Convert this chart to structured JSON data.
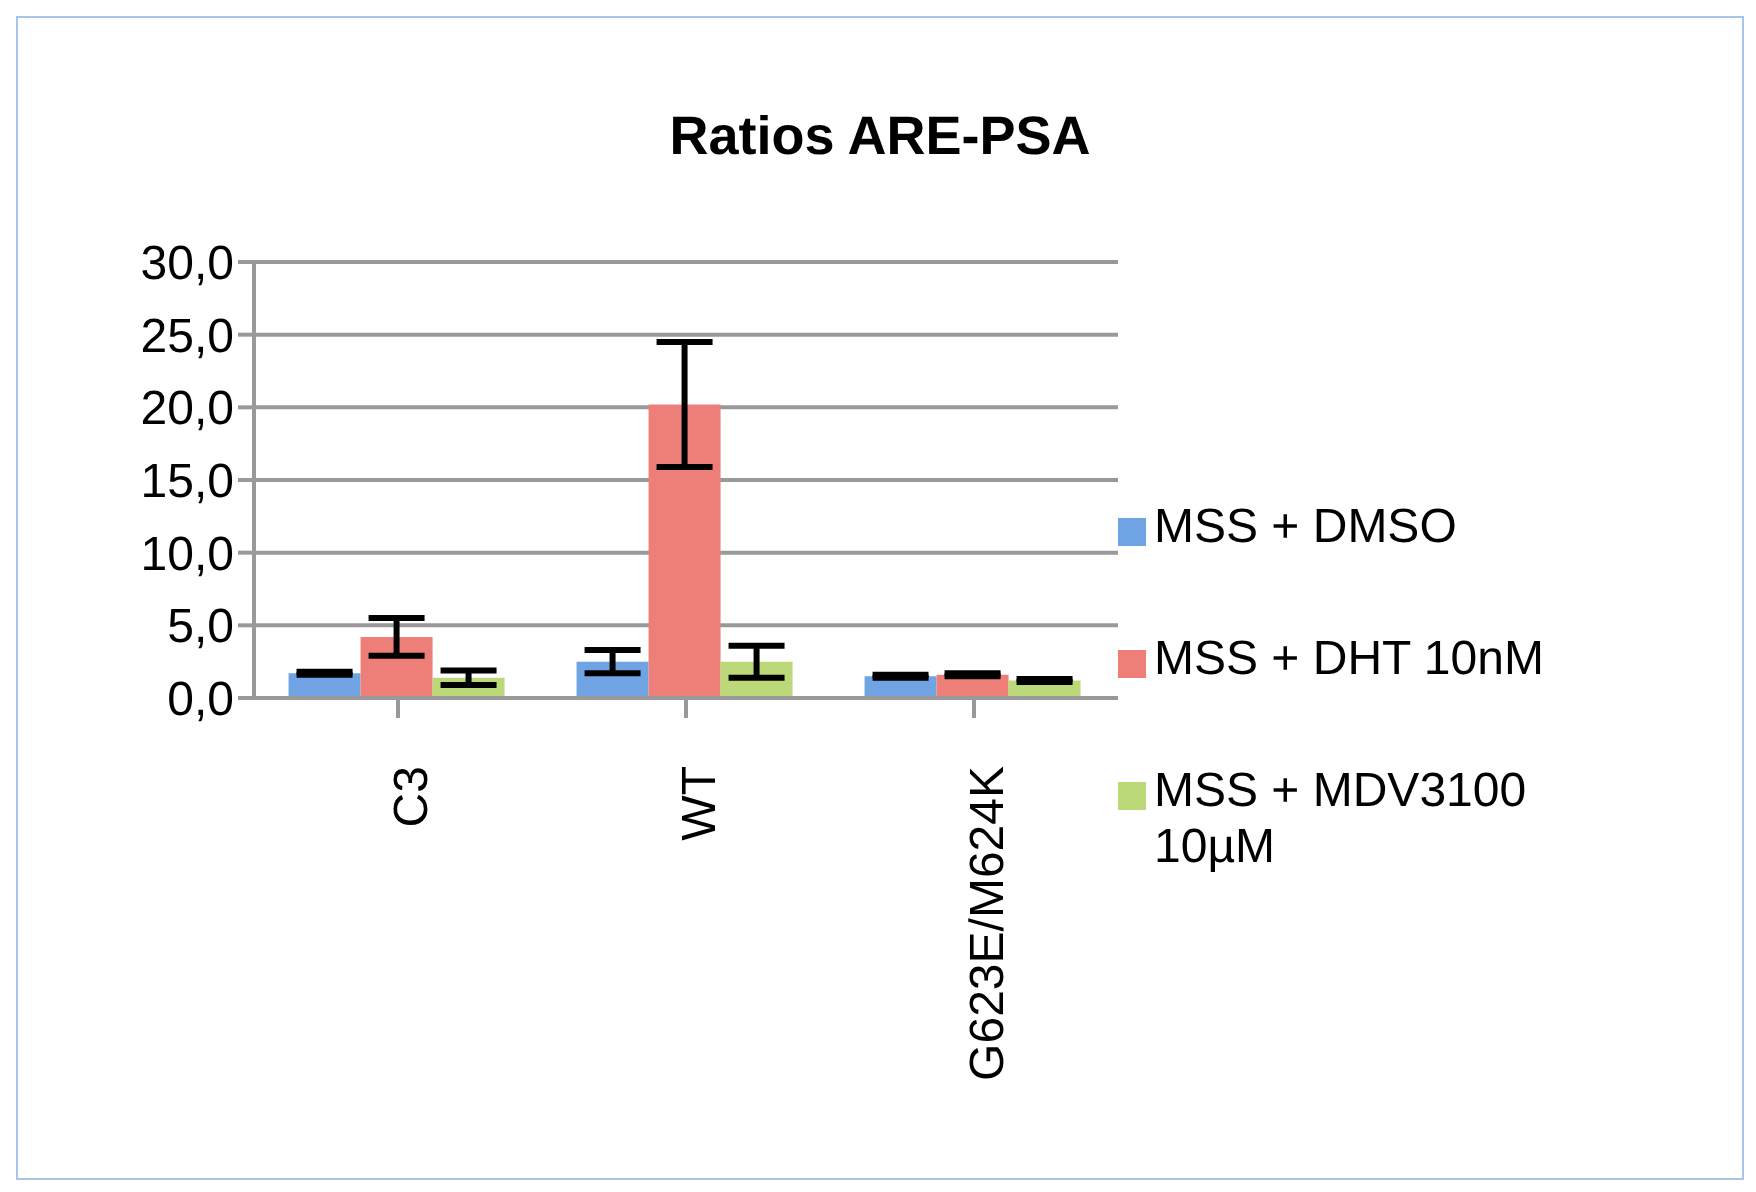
{
  "chart_data": {
    "type": "bar",
    "title": "Ratios ARE-PSA",
    "categories": [
      "C3",
      "WT",
      "G623E/M624K"
    ],
    "series": [
      {
        "name": "MSS + DMSO",
        "color": "#6fa3e3",
        "values": [
          1.7,
          2.5,
          1.5
        ],
        "errors": [
          0.1,
          0.8,
          0.1
        ]
      },
      {
        "name": "MSS + DHT 10nM",
        "color": "#ee7f78",
        "values": [
          4.2,
          20.2,
          1.6
        ],
        "errors": [
          1.3,
          4.3,
          0.1
        ]
      },
      {
        "name": "MSS + MDV3100 10µM",
        "color": "#bcd97a",
        "values": [
          1.4,
          2.5,
          1.2
        ],
        "errors": [
          0.5,
          1.1,
          0.1
        ]
      }
    ],
    "ylim": [
      0,
      30
    ],
    "yticks": [
      {
        "value": 0,
        "label": "0,0"
      },
      {
        "value": 5,
        "label": "5,0"
      },
      {
        "value": 10,
        "label": "10,0"
      },
      {
        "value": 15,
        "label": "15,0"
      },
      {
        "value": 20,
        "label": "20,0"
      },
      {
        "value": 25,
        "label": "25,0"
      },
      {
        "value": 30,
        "label": "30,0"
      }
    ],
    "grid": "y",
    "legend": "right"
  }
}
